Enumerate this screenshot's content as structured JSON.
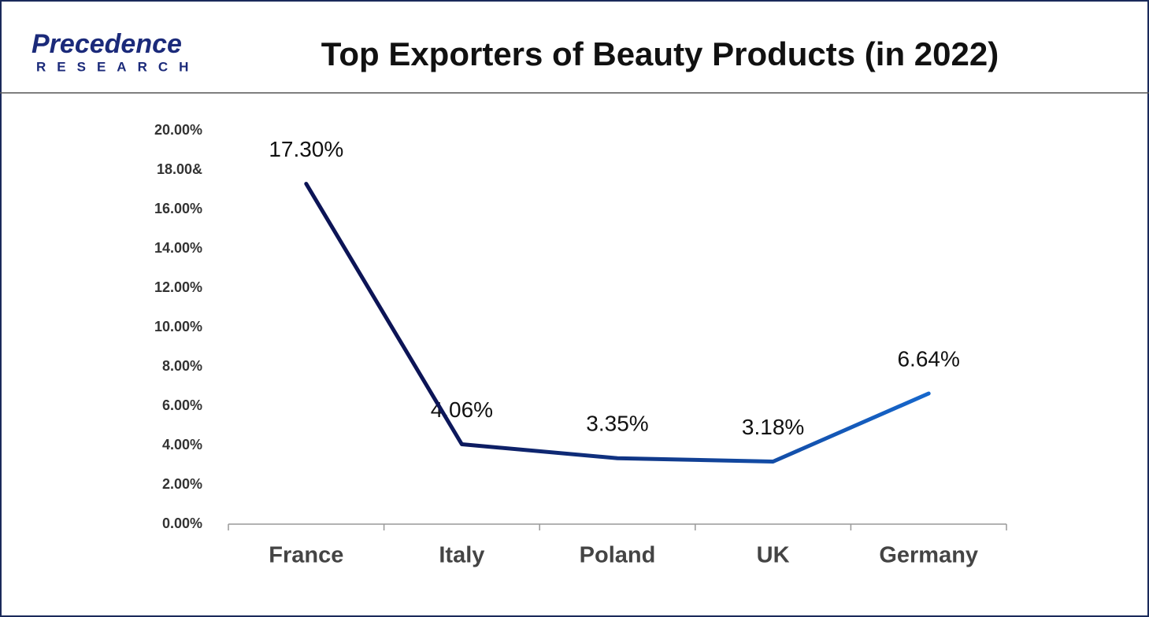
{
  "logo": {
    "name": "Precedence",
    "sub": "RESEARCH"
  },
  "chart_data": {
    "type": "line",
    "title": "Top Exporters of Beauty Products (in 2022)",
    "categories": [
      "France",
      "Italy",
      "Poland",
      "UK",
      "Germany"
    ],
    "values": [
      17.3,
      4.06,
      3.35,
      3.18,
      6.64
    ],
    "value_labels": [
      "17.30%",
      "4.06%",
      "3.35%",
      "3.18%",
      "6.64%"
    ],
    "color": "#0c1456",
    "color_end": "#1667cc",
    "ylim": [
      0,
      20
    ],
    "yticks": [
      {
        "value": 0,
        "label": "0.00%"
      },
      {
        "value": 2,
        "label": "2.00%"
      },
      {
        "value": 4,
        "label": "4.00%"
      },
      {
        "value": 6,
        "label": "6.00%"
      },
      {
        "value": 8,
        "label": "8.00%"
      },
      {
        "value": 10,
        "label": "10.00%"
      },
      {
        "value": 12,
        "label": "12.00%"
      },
      {
        "value": 14,
        "label": "14.00%"
      },
      {
        "value": 16,
        "label": "16.00%"
      },
      {
        "value": 18,
        "label": "18.00&"
      },
      {
        "value": 20,
        "label": "20.00%"
      }
    ],
    "grid": false
  }
}
